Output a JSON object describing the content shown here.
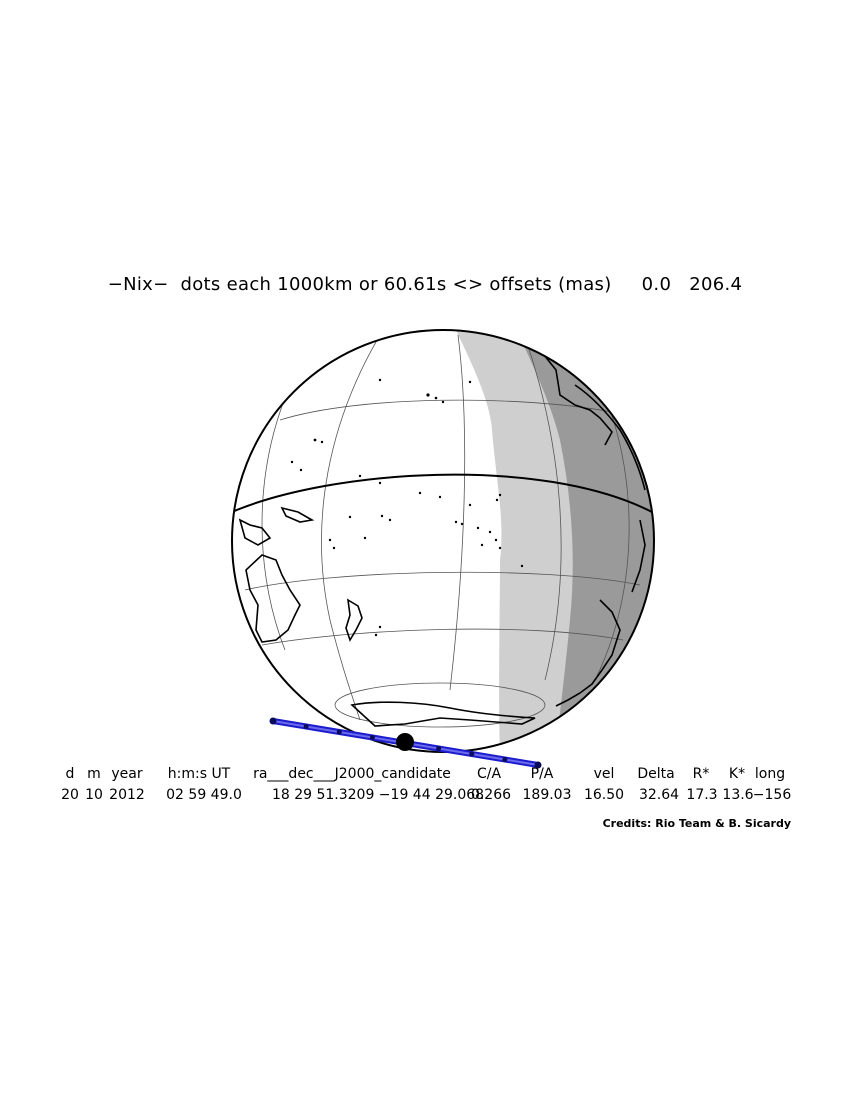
{
  "title": "−Nix−  dots each 1000km or 60.61s <> offsets (mas)     0.0   206.4",
  "map": {
    "colors": {
      "night_shade": "#9a9a9a",
      "twilight_shade": "#cfcfcf",
      "path_line": "#1c1ccc",
      "path_dots": "#0a0a5a",
      "event_marker": "#000000"
    },
    "features": [
      "globe-outline",
      "graticule",
      "equator-line",
      "coastlines",
      "day-night-terminator",
      "shadow-path-track",
      "closest-approach-marker"
    ]
  },
  "table": {
    "headers": [
      "d",
      "m",
      "year",
      "h:m:s UT",
      "ra___dec___J2000_candidate",
      "C/A",
      "P/A",
      "vel",
      "Delta",
      "R*",
      "K*",
      "long"
    ],
    "values": [
      "20",
      "10",
      "2012",
      "02 59 49.0",
      "18 29 51.3209  −19 44 29.068",
      "0.266",
      "189.03",
      "16.50",
      "32.64",
      "17.3",
      "13.6",
      "−156"
    ]
  },
  "credits": "Credits: Rio Team & B. Sicardy"
}
